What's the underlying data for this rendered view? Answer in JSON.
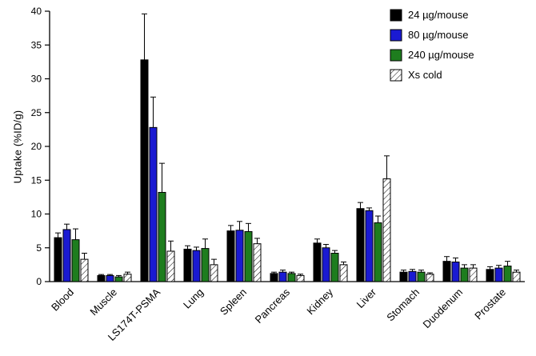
{
  "chart_data": {
    "type": "bar",
    "title": "",
    "xlabel": "",
    "ylabel": "Uptake (%ID/g)",
    "ylim": [
      0,
      40
    ],
    "ytick_step": 5,
    "grid": false,
    "legend_position": "top-right",
    "categories": [
      "Blood",
      "Muscle",
      "LS174T-PSMA",
      "Lung",
      "Spleen",
      "Pancreas",
      "Kidney",
      "Liver",
      "Stomach",
      "Duodenum",
      "Prostate"
    ],
    "series": [
      {
        "name": "24 µg/mouse",
        "color": "#000000",
        "pattern": "solid",
        "values": [
          6.5,
          0.9,
          32.8,
          4.8,
          7.5,
          1.2,
          5.7,
          10.8,
          1.4,
          3.0,
          1.8
        ],
        "errors": [
          0.7,
          0.15,
          6.8,
          0.5,
          0.8,
          0.2,
          0.6,
          0.9,
          0.3,
          0.7,
          0.4
        ]
      },
      {
        "name": "80 µg/mouse",
        "color": "#1a1ad2",
        "pattern": "solid",
        "values": [
          7.7,
          0.9,
          22.8,
          4.6,
          7.6,
          1.4,
          5.0,
          10.5,
          1.5,
          2.9,
          2.0
        ],
        "errors": [
          0.8,
          0.15,
          4.5,
          0.5,
          1.3,
          0.3,
          0.5,
          0.4,
          0.3,
          0.6,
          0.4
        ]
      },
      {
        "name": "240 µg/mouse",
        "color": "#1e7d1e",
        "pattern": "solid",
        "values": [
          6.2,
          0.7,
          13.2,
          4.9,
          7.4,
          1.2,
          4.2,
          8.7,
          1.4,
          2.0,
          2.3
        ],
        "errors": [
          1.6,
          0.2,
          4.3,
          1.4,
          1.2,
          0.2,
          0.4,
          1.0,
          0.3,
          0.5,
          0.7
        ]
      },
      {
        "name": "Xs cold",
        "color": "#ffffff",
        "pattern": "hatch",
        "values": [
          3.3,
          1.1,
          4.5,
          2.5,
          5.6,
          0.9,
          2.5,
          15.2,
          1.1,
          2.0,
          1.4
        ],
        "errors": [
          0.9,
          0.3,
          1.5,
          0.8,
          0.8,
          0.2,
          0.4,
          3.4,
          0.2,
          0.5,
          0.3
        ]
      }
    ]
  }
}
